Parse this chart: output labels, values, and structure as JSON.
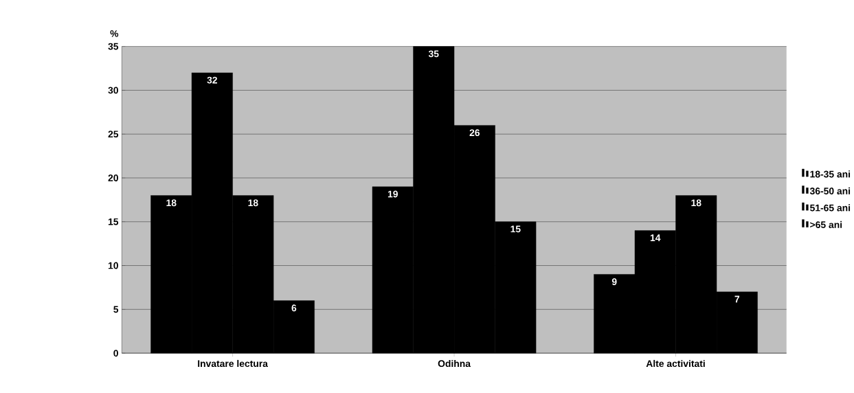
{
  "chart_data": {
    "type": "bar",
    "ylabel": "%",
    "categories": [
      "Invatare lectura",
      "Odihna",
      "Alte activitati"
    ],
    "series": [
      {
        "name": "18-35 ani",
        "color": "#000000",
        "values": [
          18,
          19,
          9
        ]
      },
      {
        "name": "36-50 ani",
        "color": "#000000",
        "values": [
          32,
          35,
          14
        ]
      },
      {
        "name": "51-65 ani",
        "color": "#000000",
        "values": [
          18,
          26,
          18
        ]
      },
      {
        "name": ">65 ani",
        "color": "#000000",
        "values": [
          6,
          15,
          7
        ]
      }
    ],
    "ylim": [
      0,
      35
    ],
    "yticks": [
      0,
      5,
      10,
      15,
      20,
      25,
      30,
      35
    ],
    "grid": "y",
    "legend": "right",
    "data_labels": true
  }
}
